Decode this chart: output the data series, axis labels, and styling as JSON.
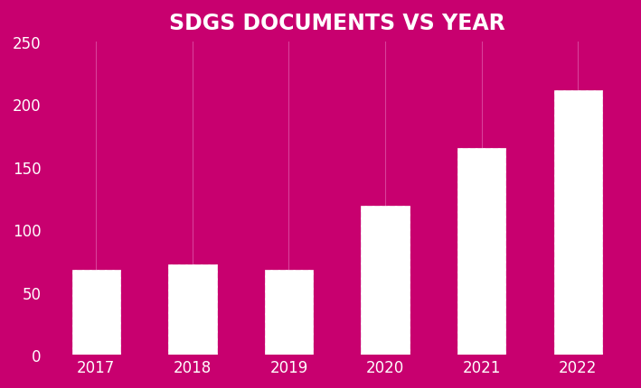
{
  "title": "SDGS DOCUMENTS VS YEAR",
  "categories": [
    "2017",
    "2018",
    "2019",
    "2020",
    "2021",
    "2022"
  ],
  "values": [
    68,
    72,
    68,
    119,
    165,
    211
  ],
  "background_color": "#C8006F",
  "bar_face_color": "#FFFFFF",
  "bar_hatch": "////",
  "bar_edge_color": "#FFFFFF",
  "hatch_color": "#5BAFD6",
  "grid_color": "#D9409A",
  "tick_color": "white",
  "title_color": "white",
  "ylim": [
    0,
    250
  ],
  "yticks": [
    0,
    50,
    100,
    150,
    200,
    250
  ],
  "title_fontsize": 17,
  "tick_fontsize": 12,
  "bar_width": 0.5
}
